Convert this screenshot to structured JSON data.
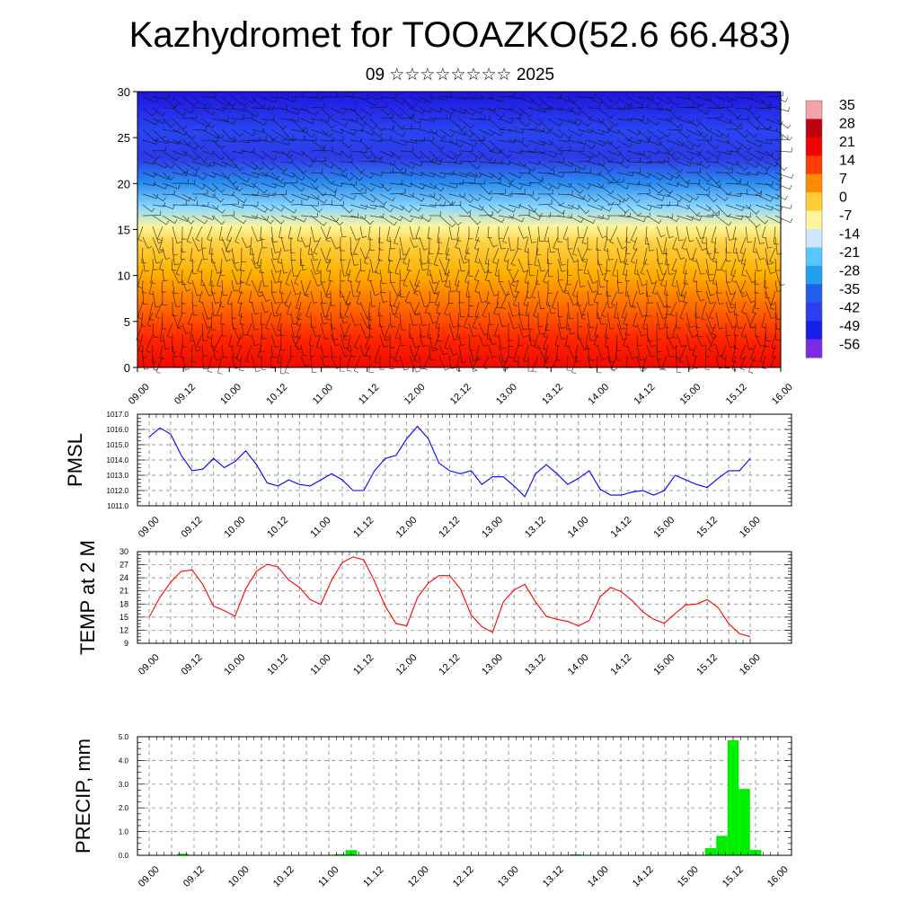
{
  "title": "Kazhydromet for TOOAZKO(52.6 66.483)",
  "subtitle": "09 ☆☆☆☆☆☆☆☆ 2025",
  "chart_data": [
    {
      "type": "heatmap",
      "id": "crossSection",
      "description_kind": "time-height cross section of temperature with wind barbs",
      "ylim": [
        0,
        30
      ],
      "y_ticks": [
        "0",
        "5",
        "10",
        "15",
        "20",
        "25",
        "30"
      ],
      "x_ticks": [
        "09.00",
        "09.12",
        "10.00",
        "10.12",
        "11.00",
        "11.12",
        "12.00",
        "12.12",
        "13.00",
        "13.12",
        "14.00",
        "14.12",
        "15.00",
        "15.12",
        "16.00"
      ],
      "colorbar_labels": [
        "35",
        "28",
        "21",
        "14",
        "7",
        "0",
        "-7",
        "-14",
        "-21",
        "-28",
        "-35",
        "-42",
        "-49",
        "-56"
      ],
      "colormap": [
        "#f4a3a8",
        "#c0000f",
        "#f20000",
        "#ff3d00",
        "#ff8c00",
        "#ffcc33",
        "#fff59a",
        "#cfe6ff",
        "#55c8ff",
        "#1ea0ef",
        "#1e5ff0",
        "#2c3ef0",
        "#1420e8",
        "#7d2ce6"
      ],
      "value_range": [
        -60,
        38
      ]
    },
    {
      "type": "line",
      "id": "pmsl",
      "ylabel": "PMSL",
      "ylim": [
        1011,
        1017
      ],
      "y_ticks": [
        "1011.0",
        "1012.0",
        "1013.0",
        "1014.0",
        "1015.0",
        "1016.0",
        "1017.0"
      ],
      "x_ticks": [
        "09.00",
        "09.12",
        "10.00",
        "10.12",
        "11.00",
        "11.12",
        "12.00",
        "12.12",
        "13.00",
        "13.12",
        "14.00",
        "14.12",
        "15.00",
        "15.12",
        "16.00"
      ],
      "color": "#0000ff",
      "values": [
        1015.5,
        1016.1,
        1015.7,
        1014.3,
        1013.3,
        1013.4,
        1014.1,
        1013.5,
        1013.9,
        1014.6,
        1013.7,
        1012.5,
        1012.3,
        1012.7,
        1012.4,
        1012.3,
        1012.7,
        1013.1,
        1012.7,
        1012.0,
        1012.0,
        1013.3,
        1014.1,
        1014.3,
        1015.4,
        1016.2,
        1015.4,
        1013.8,
        1013.3,
        1013.1,
        1013.3,
        1012.4,
        1012.9,
        1012.9,
        1012.3,
        1011.6,
        1013.1,
        1013.7,
        1013.1,
        1012.4,
        1012.8,
        1013.3,
        1012.1,
        1011.7,
        1011.7,
        1011.9,
        1012.0,
        1011.7,
        1012.0,
        1013.0,
        1012.7,
        1012.4,
        1012.2,
        1012.8,
        1013.3,
        1013.3,
        1014.1
      ]
    },
    {
      "type": "line",
      "id": "temp",
      "ylabel": "TEMP at 2 M",
      "ylim": [
        9,
        30
      ],
      "y_ticks": [
        "9",
        "12",
        "15",
        "18",
        "21",
        "24",
        "27",
        "30"
      ],
      "x_ticks": [
        "09.00",
        "09.12",
        "10.00",
        "10.12",
        "11.00",
        "11.12",
        "12.00",
        "12.12",
        "13.00",
        "13.12",
        "14.00",
        "14.12",
        "15.00",
        "15.12",
        "16.00"
      ],
      "color": "#ff0000",
      "values": [
        15.0,
        19.5,
        23.0,
        25.5,
        25.8,
        22.5,
        17.5,
        16.5,
        15.2,
        21.5,
        25.5,
        27.1,
        26.5,
        23.5,
        21.8,
        19.0,
        17.9,
        23.5,
        27.5,
        28.8,
        28.1,
        23.2,
        17.5,
        13.5,
        13.0,
        19.5,
        22.8,
        24.5,
        24.5,
        21.5,
        15.5,
        12.8,
        11.5,
        18.5,
        21.2,
        22.5,
        18.5,
        15.2,
        14.5,
        14.0,
        13.0,
        14.2,
        19.6,
        21.8,
        20.8,
        18.8,
        16.2,
        14.5,
        13.6,
        15.8,
        17.8,
        18.0,
        19.0,
        17.2,
        13.5,
        11.2,
        10.5
      ]
    },
    {
      "type": "bar",
      "id": "precip",
      "ylabel": "PRECIP, mm",
      "ylim": [
        0,
        5
      ],
      "y_ticks": [
        "0.0",
        "1.0",
        "2.0",
        "3.0",
        "4.0",
        "5.0"
      ],
      "x_ticks": [
        "09.00",
        "09.12",
        "10.00",
        "10.12",
        "11.00",
        "11.12",
        "12.00",
        "12.12",
        "13.00",
        "13.12",
        "14.00",
        "14.12",
        "15.00",
        "15.12",
        "16.00"
      ],
      "color": "#00ee00",
      "values": [
        0,
        0,
        0,
        0.07,
        0,
        0,
        0,
        0,
        0,
        0,
        0,
        0,
        0,
        0,
        0,
        0,
        0,
        0.05,
        0.22,
        0,
        0,
        0,
        0,
        0,
        0,
        0,
        0,
        0,
        0,
        0,
        0,
        0,
        0,
        0,
        0,
        0,
        0.02,
        0,
        0.04,
        0,
        0,
        0,
        0,
        0,
        0,
        0.02,
        0,
        0,
        0.03,
        0,
        0.3,
        0.82,
        4.85,
        2.8,
        0.23,
        0,
        0
      ]
    }
  ]
}
